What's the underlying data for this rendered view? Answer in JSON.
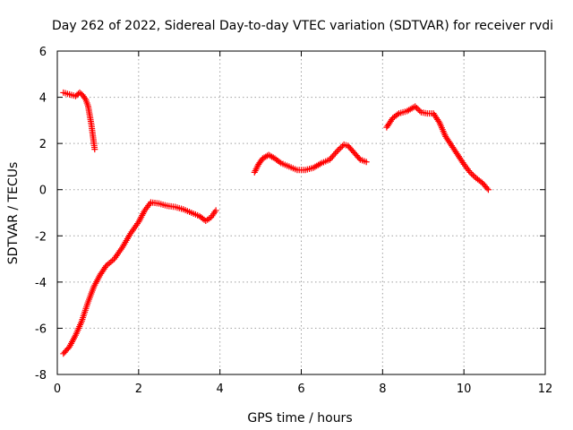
{
  "chart_data": {
    "type": "scatter",
    "title": "Day 262 of 2022, Sidereal Day-to-day VTEC variation (SDTVAR) for receiver rvdi",
    "xlabel": "GPS time / hours",
    "ylabel": "SDTVAR / TECUs",
    "xlim": [
      0,
      12
    ],
    "ylim": [
      -8,
      6
    ],
    "xticks": [
      "0",
      "2",
      "4",
      "6",
      "8",
      "10",
      "12"
    ],
    "yticks": [
      "-8",
      "-6",
      "-4",
      "-2",
      "0",
      "2",
      "4",
      "6"
    ],
    "grid": true,
    "marker": "+",
    "color": "#ff0000",
    "series": [
      {
        "values": [
          [
            0.15,
            4.2
          ],
          [
            0.25,
            4.15
          ],
          [
            0.35,
            4.1
          ],
          [
            0.45,
            4.05
          ],
          [
            0.55,
            4.2
          ],
          [
            0.62,
            4.1
          ],
          [
            0.7,
            3.9
          ],
          [
            0.76,
            3.6
          ],
          [
            0.8,
            3.2
          ],
          [
            0.84,
            2.8
          ],
          [
            0.87,
            2.4
          ],
          [
            0.9,
            2.0
          ],
          [
            0.92,
            1.75
          ]
        ]
      },
      {
        "values": [
          [
            0.15,
            -7.1
          ],
          [
            0.3,
            -6.8
          ],
          [
            0.45,
            -6.3
          ],
          [
            0.6,
            -5.7
          ],
          [
            0.75,
            -4.9
          ],
          [
            0.9,
            -4.2
          ],
          [
            1.05,
            -3.7
          ],
          [
            1.2,
            -3.3
          ],
          [
            1.4,
            -3.0
          ],
          [
            1.6,
            -2.5
          ],
          [
            1.8,
            -1.9
          ],
          [
            2.0,
            -1.4
          ],
          [
            2.15,
            -0.9
          ],
          [
            2.3,
            -0.55
          ],
          [
            2.5,
            -0.6
          ],
          [
            2.7,
            -0.7
          ],
          [
            2.9,
            -0.75
          ],
          [
            3.1,
            -0.85
          ],
          [
            3.3,
            -1.0
          ],
          [
            3.5,
            -1.15
          ],
          [
            3.65,
            -1.35
          ],
          [
            3.78,
            -1.2
          ],
          [
            3.9,
            -0.9
          ]
        ]
      },
      {
        "values": [
          [
            4.85,
            0.75
          ],
          [
            4.95,
            1.1
          ],
          [
            5.05,
            1.35
          ],
          [
            5.2,
            1.5
          ],
          [
            5.35,
            1.35
          ],
          [
            5.5,
            1.15
          ],
          [
            5.7,
            1.0
          ],
          [
            5.9,
            0.85
          ],
          [
            6.1,
            0.85
          ],
          [
            6.3,
            0.95
          ],
          [
            6.5,
            1.15
          ],
          [
            6.7,
            1.3
          ],
          [
            6.9,
            1.7
          ],
          [
            7.05,
            1.95
          ],
          [
            7.15,
            1.9
          ],
          [
            7.3,
            1.6
          ],
          [
            7.45,
            1.3
          ],
          [
            7.6,
            1.2
          ]
        ]
      },
      {
        "values": [
          [
            8.1,
            2.7
          ],
          [
            8.25,
            3.1
          ],
          [
            8.4,
            3.3
          ],
          [
            8.6,
            3.4
          ],
          [
            8.8,
            3.6
          ],
          [
            8.95,
            3.35
          ],
          [
            9.1,
            3.3
          ],
          [
            9.25,
            3.3
          ],
          [
            9.4,
            2.9
          ],
          [
            9.55,
            2.3
          ],
          [
            9.7,
            1.9
          ],
          [
            9.85,
            1.5
          ],
          [
            10.0,
            1.1
          ],
          [
            10.15,
            0.75
          ],
          [
            10.3,
            0.5
          ],
          [
            10.45,
            0.3
          ],
          [
            10.6,
            0.0
          ]
        ]
      }
    ]
  }
}
